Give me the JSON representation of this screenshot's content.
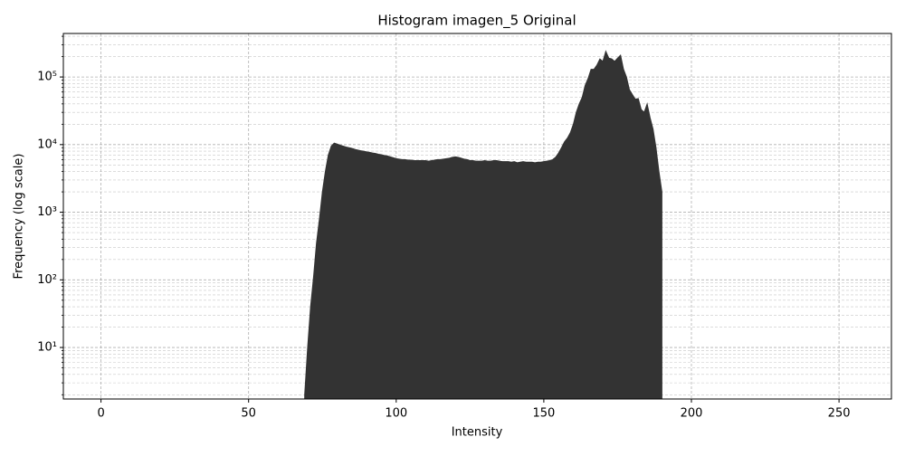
{
  "chart_data": {
    "type": "area",
    "title": "Histogram imagen_5 Original",
    "xlabel": "Intensity",
    "ylabel": "Frequency (log scale)",
    "color": "#333333",
    "yscale": "log",
    "grid": true,
    "x": [
      69,
      70,
      71,
      72,
      73,
      74,
      75,
      76,
      77,
      78,
      79,
      80,
      81,
      82,
      83,
      84,
      85,
      86,
      87,
      88,
      89,
      90,
      91,
      92,
      93,
      94,
      95,
      96,
      97,
      98,
      99,
      100,
      101,
      102,
      103,
      104,
      105,
      106,
      107,
      108,
      109,
      110,
      111,
      112,
      113,
      114,
      115,
      116,
      117,
      118,
      119,
      120,
      121,
      122,
      123,
      124,
      125,
      126,
      127,
      128,
      129,
      130,
      131,
      132,
      133,
      134,
      135,
      136,
      137,
      138,
      139,
      140,
      141,
      142,
      143,
      144,
      145,
      146,
      147,
      148,
      149,
      150,
      151,
      152,
      153,
      154,
      155,
      156,
      157,
      158,
      159,
      160,
      161,
      162,
      163,
      164,
      165,
      166,
      167,
      168,
      169,
      170,
      171,
      172,
      173,
      174,
      175,
      176,
      177,
      178,
      179,
      180,
      181,
      182,
      183,
      184,
      185,
      186,
      187,
      188,
      189,
      190
    ],
    "values": [
      2,
      10,
      40,
      110,
      350,
      800,
      2000,
      4000,
      7000,
      9500,
      10500,
      10200,
      9800,
      9500,
      9200,
      9000,
      8800,
      8500,
      8300,
      8100,
      8000,
      7800,
      7700,
      7500,
      7400,
      7200,
      7100,
      6900,
      6800,
      6600,
      6400,
      6200,
      6100,
      6000,
      6000,
      5900,
      5900,
      5800,
      5800,
      5800,
      5800,
      5800,
      5700,
      5800,
      5900,
      6000,
      6000,
      6100,
      6200,
      6300,
      6500,
      6600,
      6500,
      6300,
      6100,
      6000,
      5800,
      5800,
      5700,
      5700,
      5700,
      5800,
      5700,
      5700,
      5800,
      5800,
      5700,
      5600,
      5600,
      5600,
      5500,
      5600,
      5400,
      5500,
      5600,
      5500,
      5500,
      5500,
      5400,
      5500,
      5500,
      5600,
      5700,
      5800,
      6000,
      6500,
      7500,
      9000,
      11000,
      12500,
      15000,
      20000,
      30000,
      40000,
      50000,
      75000,
      95000,
      130000,
      130000,
      150000,
      185000,
      170000,
      240000,
      190000,
      185000,
      170000,
      190000,
      210000,
      130000,
      100000,
      65000,
      55000,
      47000,
      48000,
      33000,
      30000,
      40000,
      25000,
      17000,
      9000,
      4000,
      2000
    ],
    "xlim": [
      -12.75,
      267.75
    ],
    "xticks": [
      0,
      50,
      100,
      150,
      200,
      250
    ],
    "ylim": [
      1.73,
      440000
    ],
    "yticks": [
      {
        "value": 10,
        "label": "10¹"
      },
      {
        "value": 100,
        "label": "10²"
      },
      {
        "value": 1000,
        "label": "10³"
      },
      {
        "value": 10000,
        "label": "10⁴"
      },
      {
        "value": 100000,
        "label": "10⁵"
      }
    ],
    "yminorticks": [
      2,
      3,
      4,
      5,
      6,
      7,
      8,
      9,
      20,
      30,
      40,
      50,
      60,
      70,
      80,
      90,
      200,
      300,
      400,
      500,
      600,
      700,
      800,
      900,
      2000,
      3000,
      4000,
      5000,
      6000,
      7000,
      8000,
      9000,
      20000,
      30000,
      40000,
      50000,
      60000,
      70000,
      80000,
      90000,
      200000,
      300000,
      400000
    ]
  }
}
